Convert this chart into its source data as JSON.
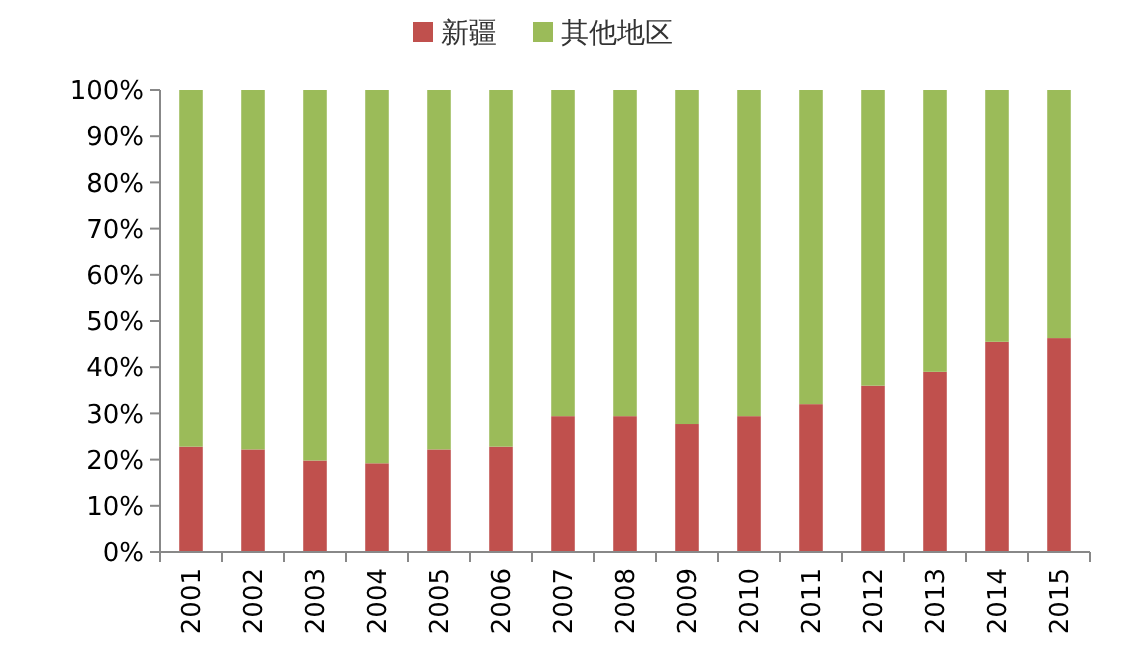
{
  "chart_data": {
    "type": "bar",
    "stacked": true,
    "categories": [
      "2001",
      "2002",
      "2003",
      "2004",
      "2005",
      "2006",
      "2007",
      "2008",
      "2009",
      "2010",
      "2011",
      "2012",
      "2013",
      "2014",
      "2015"
    ],
    "series": [
      {
        "name": "新疆",
        "color": "#c0504d",
        "values": [
          22.8,
          22.2,
          19.8,
          19.2,
          22.2,
          22.8,
          29.4,
          29.4,
          27.7,
          29.4,
          32,
          36,
          39,
          45.5,
          46.3
        ]
      },
      {
        "name": "其他地区",
        "color": "#9bbb59",
        "values": [
          77.2,
          77.8,
          80.2,
          80.8,
          77.8,
          77.2,
          70.6,
          70.6,
          72.3,
          70.6,
          68,
          64,
          61,
          54.5,
          53.7
        ]
      }
    ],
    "ylim": [
      0,
      100
    ],
    "yticks": [
      {
        "value": 0,
        "label": "0%"
      },
      {
        "value": 10,
        "label": "10%"
      },
      {
        "value": 20,
        "label": "20%"
      },
      {
        "value": 30,
        "label": "30%"
      },
      {
        "value": 40,
        "label": "40%"
      },
      {
        "value": 50,
        "label": "50%"
      },
      {
        "value": 60,
        "label": "60%"
      },
      {
        "value": 70,
        "label": "70%"
      },
      {
        "value": 80,
        "label": "80%"
      },
      {
        "value": 90,
        "label": "90%"
      },
      {
        "value": 100,
        "label": "100%"
      }
    ],
    "legend": "top"
  }
}
